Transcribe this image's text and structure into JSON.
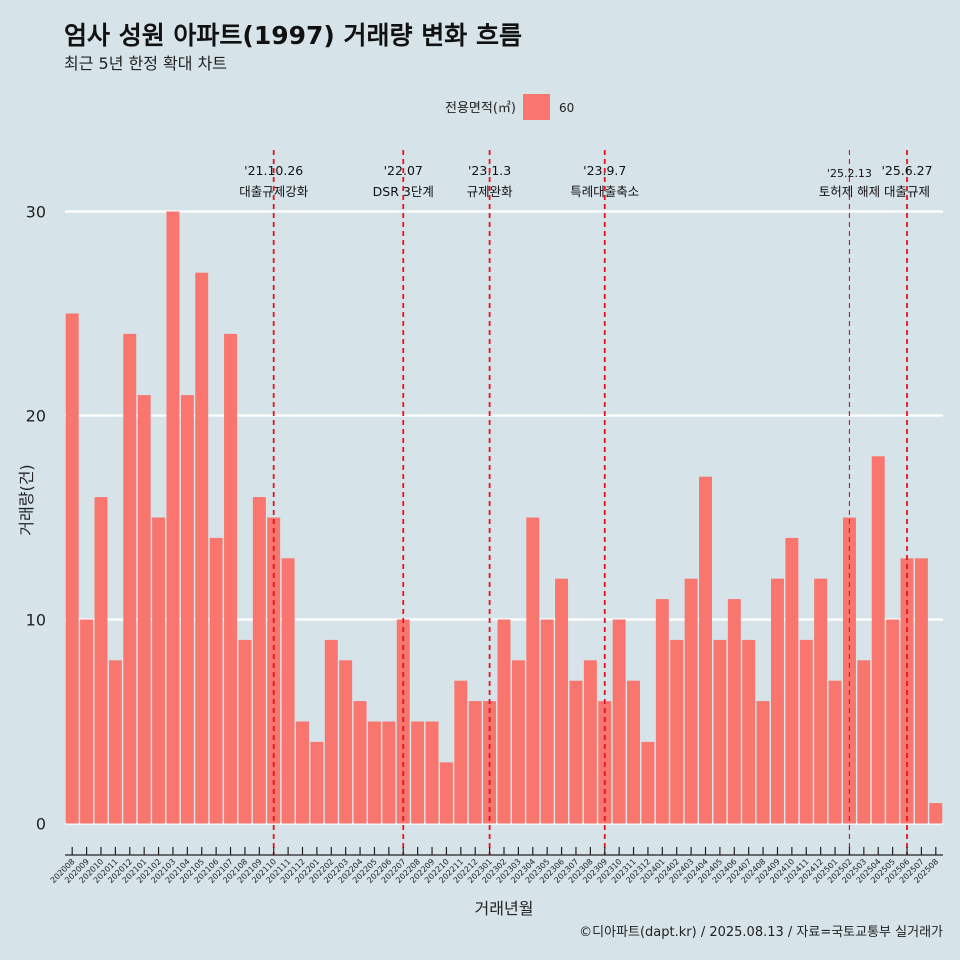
{
  "header": {
    "title": "엄사 성원 아파트(1997) 거래량 변화 흐름",
    "subtitle": "최근 5년 한정 확대 차트"
  },
  "legend": {
    "title": "전용면적(㎡)",
    "items": [
      {
        "label": "60",
        "color": "#f8766d"
      }
    ]
  },
  "caption": "©디아파트(dapt.kr) / 2025.08.13 / 자료=국토교통부 실거래가",
  "colors": {
    "background": "#d6e4ea",
    "bar": "#f8766d",
    "grid": "#ffffff",
    "event_line": "#e8141c"
  },
  "chart_data": {
    "type": "bar",
    "title": "엄사 성원 아파트(1997) 거래량 변화 흐름",
    "subtitle": "최근 5년 한정 확대 차트",
    "xlabel": "거래년월",
    "ylabel": "거래량(건)",
    "ylim": [
      0,
      30
    ],
    "yticks": [
      0,
      10,
      20,
      30
    ],
    "grid": true,
    "legend_position": "top-center",
    "categories": [
      "202008",
      "202009",
      "202010",
      "202011",
      "202012",
      "202101",
      "202102",
      "202103",
      "202104",
      "202105",
      "202106",
      "202107",
      "202108",
      "202109",
      "202110",
      "202111",
      "202112",
      "202201",
      "202202",
      "202203",
      "202204",
      "202205",
      "202206",
      "202207",
      "202208",
      "202209",
      "202210",
      "202211",
      "202212",
      "202301",
      "202302",
      "202303",
      "202304",
      "202305",
      "202306",
      "202307",
      "202308",
      "202309",
      "202310",
      "202311",
      "202312",
      "202401",
      "202402",
      "202403",
      "202404",
      "202405",
      "202406",
      "202407",
      "202408",
      "202409",
      "202410",
      "202411",
      "202412",
      "202501",
      "202502",
      "202503",
      "202504",
      "202505",
      "202506",
      "202507",
      "202508"
    ],
    "series": [
      {
        "name": "60",
        "values": [
          25,
          10,
          16,
          8,
          24,
          21,
          15,
          30,
          21,
          27,
          14,
          24,
          9,
          16,
          15,
          13,
          5,
          4,
          9,
          8,
          6,
          5,
          5,
          10,
          5,
          5,
          3,
          7,
          6,
          6,
          10,
          8,
          15,
          10,
          12,
          7,
          8,
          6,
          10,
          7,
          4,
          11,
          9,
          12,
          17,
          9,
          11,
          9,
          6,
          12,
          14,
          9,
          12,
          7,
          15,
          8,
          18,
          10,
          13,
          13,
          1
        ]
      }
    ],
    "events": [
      {
        "date": "'21.10.26",
        "label": "대출규제강화",
        "x": "202110"
      },
      {
        "date": "'22.07",
        "label": "DSR 3단계",
        "x": "202207"
      },
      {
        "date": "'23.1.3",
        "label": "규제완화",
        "x": "202301"
      },
      {
        "date": "'23.9.7",
        "label": "특례대출축소",
        "x": "202309"
      },
      {
        "date": "'25.2.13",
        "label": "토허제 해제",
        "x": "202502"
      },
      {
        "date": "'25.6.27",
        "label": "대출규제",
        "x": "202506"
      }
    ]
  }
}
